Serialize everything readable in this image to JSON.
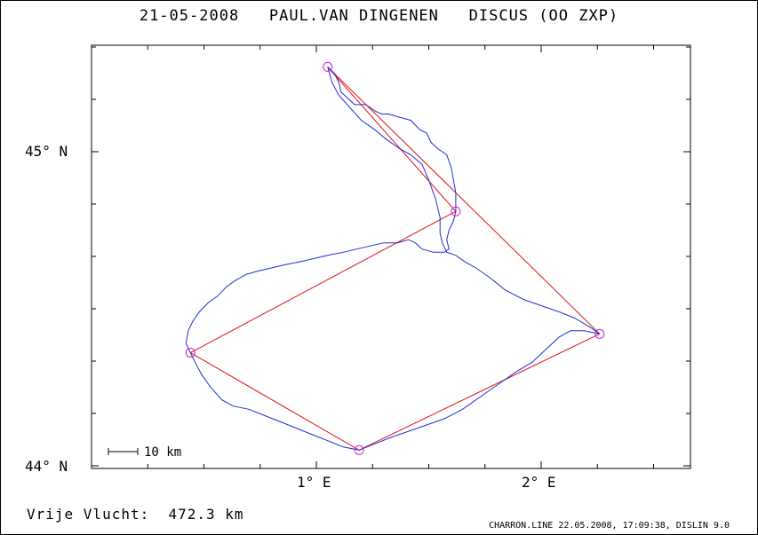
{
  "title": {
    "date": "21-05-2008",
    "pilot": "PAUL.VAN DINGENEN",
    "glider": "DISCUS (OO ZXP)"
  },
  "axes": {
    "y_labels": [
      "45° N",
      "44° N"
    ],
    "x_labels": [
      "1° E",
      "2° E"
    ]
  },
  "scale_bar": {
    "label": "10 km"
  },
  "footer": {
    "distance_label": "Vrije Vlucht:",
    "distance_value": "472.3 km"
  },
  "credit": "CHARRON.LINE 22.05.2008, 17:09:38, DISLIN 9.0",
  "colors": {
    "track": "#1f2fd6",
    "task": "#e01010",
    "turnpoint": "#d020d0"
  },
  "turnpoints": [
    {
      "name": "start",
      "lon": 1.05,
      "lat": 45.27
    },
    {
      "name": "tp1",
      "lon": 1.62,
      "lat": 44.81
    },
    {
      "name": "tp2",
      "lon": 0.44,
      "lat": 44.36
    },
    {
      "name": "tp3",
      "lon": 1.19,
      "lat": 44.05
    },
    {
      "name": "tp4",
      "lon": 2.26,
      "lat": 44.42
    }
  ],
  "task_lines": [
    [
      0,
      1
    ],
    [
      1,
      2
    ],
    [
      2,
      3
    ],
    [
      3,
      4
    ],
    [
      4,
      0
    ]
  ],
  "track": [
    [
      1.05,
      45.27
    ],
    [
      1.08,
      45.25
    ],
    [
      1.1,
      45.22
    ],
    [
      1.11,
      45.19
    ],
    [
      1.14,
      45.17
    ],
    [
      1.17,
      45.15
    ],
    [
      1.22,
      45.15
    ],
    [
      1.26,
      45.13
    ],
    [
      1.29,
      45.12
    ],
    [
      1.32,
      45.12
    ],
    [
      1.37,
      45.11
    ],
    [
      1.42,
      45.1
    ],
    [
      1.46,
      45.07
    ],
    [
      1.49,
      45.06
    ],
    [
      1.51,
      45.03
    ],
    [
      1.54,
      45.01
    ],
    [
      1.58,
      44.99
    ],
    [
      1.6,
      44.95
    ],
    [
      1.61,
      44.91
    ],
    [
      1.62,
      44.87
    ],
    [
      1.62,
      44.84
    ],
    [
      1.62,
      44.81
    ],
    [
      1.61,
      44.78
    ],
    [
      1.59,
      44.75
    ],
    [
      1.58,
      44.72
    ],
    [
      1.59,
      44.69
    ],
    [
      1.57,
      44.68
    ],
    [
      1.52,
      44.68
    ],
    [
      1.47,
      44.69
    ],
    [
      1.44,
      44.71
    ],
    [
      1.41,
      44.72
    ],
    [
      1.36,
      44.71
    ],
    [
      1.3,
      44.71
    ],
    [
      1.24,
      44.7
    ],
    [
      1.18,
      44.69
    ],
    [
      1.12,
      44.68
    ],
    [
      1.05,
      44.67
    ],
    [
      0.99,
      44.66
    ],
    [
      0.93,
      44.65
    ],
    [
      0.86,
      44.64
    ],
    [
      0.8,
      44.63
    ],
    [
      0.74,
      44.62
    ],
    [
      0.69,
      44.61
    ],
    [
      0.64,
      44.59
    ],
    [
      0.6,
      44.57
    ],
    [
      0.56,
      44.54
    ],
    [
      0.52,
      44.52
    ],
    [
      0.48,
      44.49
    ],
    [
      0.45,
      44.46
    ],
    [
      0.43,
      44.43
    ],
    [
      0.42,
      44.39
    ],
    [
      0.44,
      44.36
    ],
    [
      0.46,
      44.33
    ],
    [
      0.49,
      44.29
    ],
    [
      0.53,
      44.25
    ],
    [
      0.58,
      44.21
    ],
    [
      0.63,
      44.19
    ],
    [
      0.7,
      44.18
    ],
    [
      0.77,
      44.16
    ],
    [
      0.84,
      44.14
    ],
    [
      0.91,
      44.12
    ],
    [
      0.98,
      44.1
    ],
    [
      1.05,
      44.08
    ],
    [
      1.12,
      44.06
    ],
    [
      1.19,
      44.05
    ],
    [
      1.26,
      44.07
    ],
    [
      1.33,
      44.09
    ],
    [
      1.41,
      44.11
    ],
    [
      1.49,
      44.13
    ],
    [
      1.57,
      44.15
    ],
    [
      1.65,
      44.18
    ],
    [
      1.73,
      44.22
    ],
    [
      1.81,
      44.26
    ],
    [
      1.89,
      44.3
    ],
    [
      1.96,
      44.33
    ],
    [
      2.02,
      44.37
    ],
    [
      2.08,
      44.41
    ],
    [
      2.13,
      44.43
    ],
    [
      2.19,
      44.43
    ],
    [
      2.26,
      44.42
    ],
    [
      2.22,
      44.44
    ],
    [
      2.15,
      44.47
    ],
    [
      2.08,
      44.49
    ],
    [
      2.0,
      44.51
    ],
    [
      1.92,
      44.53
    ],
    [
      1.84,
      44.56
    ],
    [
      1.77,
      44.6
    ],
    [
      1.71,
      44.63
    ],
    [
      1.66,
      44.65
    ],
    [
      1.62,
      44.67
    ],
    [
      1.58,
      44.68
    ],
    [
      1.56,
      44.71
    ],
    [
      1.55,
      44.74
    ],
    [
      1.55,
      44.79
    ],
    [
      1.53,
      44.85
    ],
    [
      1.5,
      44.91
    ],
    [
      1.47,
      44.96
    ],
    [
      1.42,
      44.99
    ],
    [
      1.37,
      45.01
    ],
    [
      1.31,
      45.04
    ],
    [
      1.26,
      45.07
    ],
    [
      1.2,
      45.1
    ],
    [
      1.15,
      45.14
    ],
    [
      1.1,
      45.18
    ],
    [
      1.07,
      45.22
    ],
    [
      1.05,
      45.27
    ]
  ]
}
